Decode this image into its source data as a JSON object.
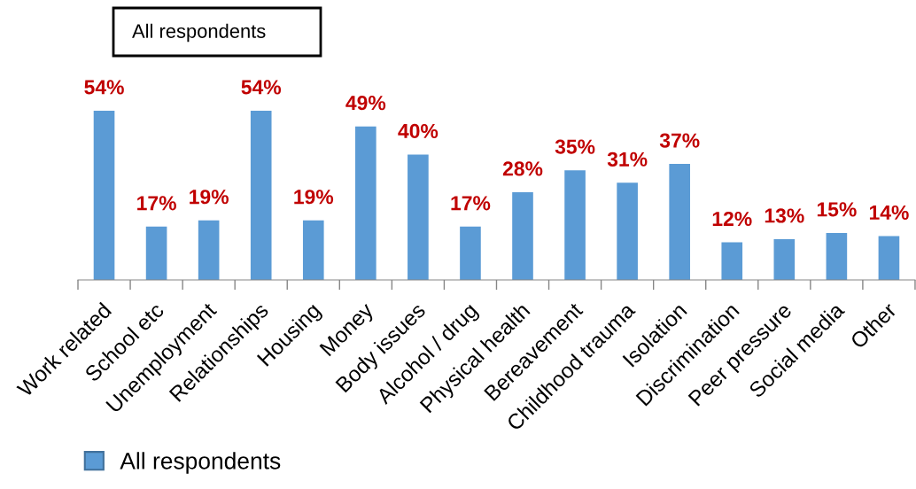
{
  "chart_data": {
    "type": "bar",
    "title": "All respondents",
    "categories": [
      "Work related",
      "School etc",
      "Unemployment",
      "Relationships",
      "Housing",
      "Money",
      "Body issues",
      "Alcohol / drug",
      "Physical health",
      "Bereavement",
      "Childhood trauma",
      "Isolation",
      "Discrimination",
      "Peer pressure",
      "Social media",
      "Other"
    ],
    "series": [
      {
        "name": "All respondents",
        "color": "#5b9bd5",
        "values": [
          54,
          17,
          19,
          54,
          19,
          49,
          40,
          17,
          28,
          35,
          31,
          37,
          12,
          13,
          15,
          14
        ],
        "value_labels": [
          "54%",
          "17%",
          "19%",
          "54%",
          "19%",
          "49%",
          "40%",
          "17%",
          "28%",
          "35%",
          "31%",
          "37%",
          "12%",
          "13%",
          "15%",
          "14%"
        ]
      }
    ],
    "tick_labels": "x",
    "legend": "bottom",
    "grid": false
  }
}
